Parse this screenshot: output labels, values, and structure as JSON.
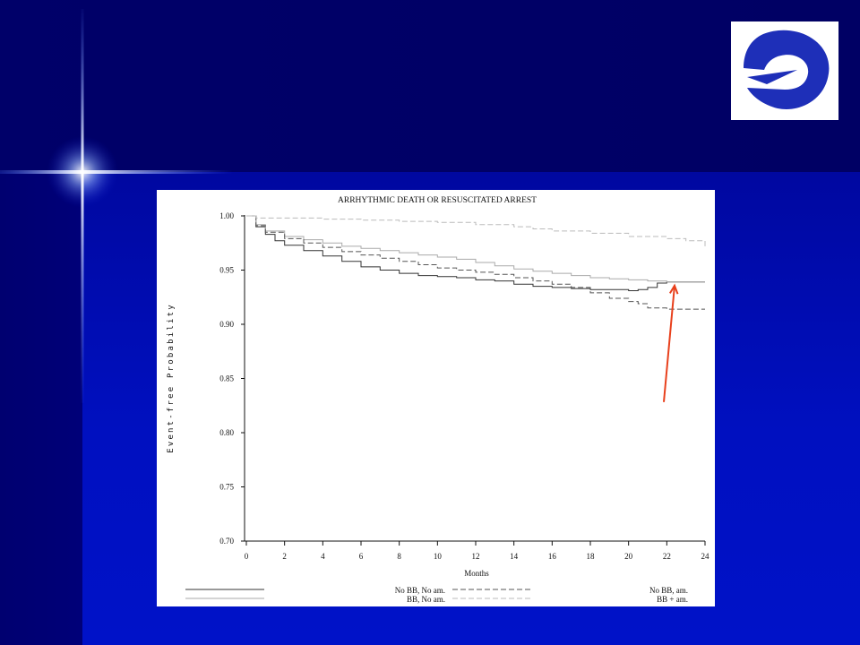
{
  "slide": {
    "colors": {
      "background_top": "#000066",
      "background_main": "#0010c0",
      "logo_blue": "#1e2fb8",
      "arrow": "#e8401c"
    },
    "logo_icon": "stylized-e-logo-icon",
    "decoration_icon": "lens-flare-star-icon"
  },
  "chart_data": {
    "type": "line",
    "title": "ARRHYTHMIC DEATH OR RESUSCITATED ARREST",
    "xlabel": "Months",
    "ylabel": "Event-free Probability",
    "xlim": [
      0,
      24
    ],
    "ylim": [
      0.7,
      1.0
    ],
    "xticks": [
      "0",
      "2",
      "4",
      "6",
      "8",
      "10",
      "12",
      "14",
      "16",
      "18",
      "20",
      "22",
      "24"
    ],
    "yticks": [
      "0.70",
      "0.75",
      "0.80",
      "0.85",
      "0.90",
      "0.95",
      "1.00"
    ],
    "grid": false,
    "legend_position": "bottom",
    "series": [
      {
        "name": "No BB, No am.",
        "color": "#333333",
        "dash": "solid",
        "x": [
          0,
          0.5,
          1,
          1.5,
          2,
          3,
          4,
          5,
          6,
          7,
          8,
          9,
          10,
          11,
          12,
          13,
          14,
          15,
          16,
          17,
          18,
          19,
          20,
          20.5,
          21,
          21.5,
          22,
          23,
          24
        ],
        "y": [
          1.0,
          0.99,
          0.983,
          0.977,
          0.973,
          0.968,
          0.963,
          0.958,
          0.953,
          0.95,
          0.947,
          0.945,
          0.944,
          0.943,
          0.941,
          0.94,
          0.937,
          0.935,
          0.934,
          0.933,
          0.932,
          0.932,
          0.931,
          0.932,
          0.934,
          0.938,
          0.939,
          0.939,
          0.939
        ]
      },
      {
        "name": "BB, No am.",
        "color": "#aaaaaa",
        "dash": "solid",
        "x": [
          0,
          0.5,
          1,
          2,
          3,
          4,
          5,
          6,
          7,
          8,
          9,
          10,
          11,
          12,
          13,
          14,
          15,
          16,
          17,
          18,
          19,
          20,
          21,
          22,
          23,
          24
        ],
        "y": [
          1.0,
          0.992,
          0.986,
          0.981,
          0.978,
          0.975,
          0.972,
          0.97,
          0.968,
          0.966,
          0.964,
          0.962,
          0.96,
          0.957,
          0.954,
          0.951,
          0.949,
          0.947,
          0.945,
          0.943,
          0.942,
          0.941,
          0.94,
          0.939,
          0.939,
          0.939
        ]
      },
      {
        "name": "No BB, am.",
        "color": "#555555",
        "dash": "dashed",
        "x": [
          0,
          0.5,
          1,
          2,
          3,
          4,
          5,
          6,
          7,
          8,
          9,
          10,
          11,
          12,
          13,
          14,
          15,
          16,
          17,
          18,
          19,
          20,
          20.5,
          21,
          22,
          23,
          24
        ],
        "y": [
          1.0,
          0.991,
          0.985,
          0.979,
          0.975,
          0.971,
          0.967,
          0.964,
          0.961,
          0.958,
          0.955,
          0.952,
          0.95,
          0.948,
          0.946,
          0.943,
          0.94,
          0.937,
          0.934,
          0.929,
          0.924,
          0.921,
          0.919,
          0.915,
          0.914,
          0.914,
          0.914
        ]
      },
      {
        "name": "BB + am.",
        "color": "#bbbbbb",
        "dash": "dashed",
        "x": [
          0,
          0.5,
          1,
          2,
          4,
          6,
          8,
          10,
          12,
          14,
          15,
          16,
          18,
          20,
          22,
          23,
          24
        ],
        "y": [
          1.0,
          0.998,
          0.998,
          0.998,
          0.997,
          0.996,
          0.995,
          0.994,
          0.992,
          0.99,
          0.988,
          0.986,
          0.984,
          0.981,
          0.979,
          0.977,
          0.972
        ]
      }
    ],
    "annotation": {
      "type": "arrow",
      "points_to_x": 22.5,
      "points_to_y": 0.939
    }
  }
}
